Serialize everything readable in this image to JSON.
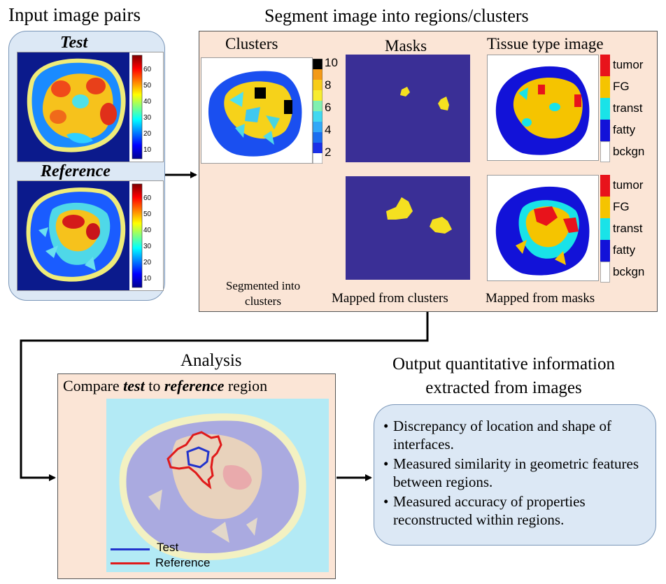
{
  "input": {
    "title": "Input image pairs",
    "test_label": "Test",
    "reference_label": "Reference",
    "colorbar_ticks": [
      "60",
      "50",
      "40",
      "30",
      "20",
      "10"
    ]
  },
  "segment": {
    "title": "Segment image into regions/clusters",
    "clusters_title": "Clusters",
    "masks_title": "Masks",
    "tissue_title": "Tissue type  image",
    "cluster_ticks": [
      "10",
      "8",
      "6",
      "4",
      "2"
    ],
    "tissue_legend": [
      "tumor",
      "FG",
      "transt",
      "fatty",
      "bckgn"
    ],
    "caption_clusters": "Segmented into clusters",
    "caption_masks": "Mapped from clusters",
    "caption_tissue": "Mapped from masks"
  },
  "analysis": {
    "title": "Analysis",
    "subtitle_pre": "Compare ",
    "subtitle_test": "test",
    "subtitle_mid": " to ",
    "subtitle_ref": "reference",
    "subtitle_post": " region",
    "legend": [
      {
        "label": "Test",
        "color": "#2233cc"
      },
      {
        "label": "Reference",
        "color": "#e01a1a"
      }
    ]
  },
  "output": {
    "title_line1": "Output quantitative information",
    "title_line2": "extracted from images",
    "bullets": [
      "Discrepancy of location and shape of interfaces.",
      "Measured similarity  in geometric features between regions.",
      "Measured accuracy of properties reconstructed within regions."
    ]
  },
  "colors": {
    "tumor": "#e8131b",
    "FG": "#f5c400",
    "transt": "#19e3e8",
    "fatty": "#1212d8",
    "bckgn": "#ffffff",
    "mask_bg": "#3a2f96",
    "mask_fg": "#f5e020"
  }
}
